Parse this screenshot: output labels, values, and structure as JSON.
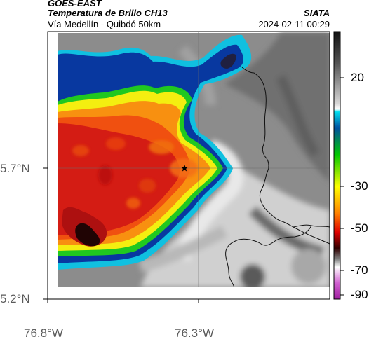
{
  "header": {
    "satellite": "GOES-EAST",
    "product": "Temperatura de Brillo CH13",
    "region": "Vía Medellín - Quibdó 50km",
    "org": "SIATA",
    "datetime": "2024-02-11 00:29"
  },
  "axes": {
    "lat_labels": [
      "5.7°N",
      "5.2°N"
    ],
    "lon_labels": [
      "76.8°W",
      "76.3°W"
    ]
  },
  "colorbar": {
    "ticks": [
      "20",
      "-30",
      "-50",
      "-70",
      "-90"
    ]
  },
  "marker": {
    "icon": "star-icon"
  },
  "colors": {
    "cold_core": "#d01010",
    "warm_ground": "#9a9a9a",
    "border": "#111111"
  }
}
